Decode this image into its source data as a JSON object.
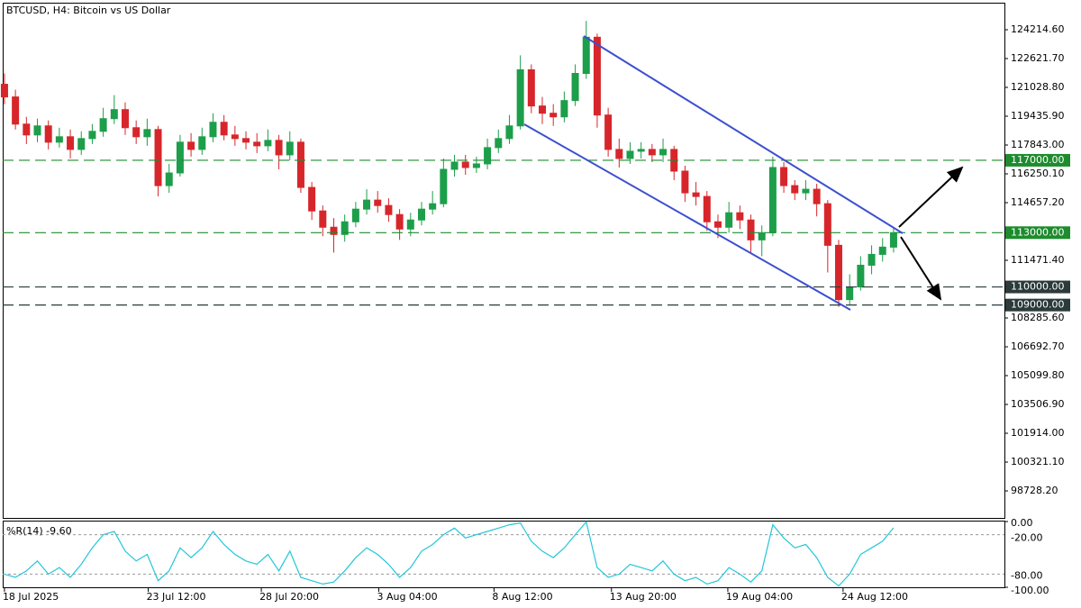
{
  "chart_data": [
    {
      "type": "candlestick",
      "title": "BTCUSD, H4:  Bitcoin vs US Dollar",
      "up_color": "#1d9e4a",
      "down_color": "#d7262b",
      "xlim": [
        -0.16,
        91.1
      ],
      "xticks": [
        {
          "value": 0,
          "label": "18 Jul 2025"
        },
        {
          "value": 13.1,
          "label": "23 Jul 12:00"
        },
        {
          "value": 23.4,
          "label": "28 Jul 20:00"
        },
        {
          "value": 34.1,
          "label": "3 Aug 04:00"
        },
        {
          "value": 44.6,
          "label": "8 Aug 12:00"
        },
        {
          "value": 55.3,
          "label": "13 Aug 20:00"
        },
        {
          "value": 65.9,
          "label": "19 Aug 04:00"
        },
        {
          "value": 76.4,
          "label": "24 Aug 12:00"
        }
      ],
      "ylim": [
        97235,
        125708
      ],
      "yticks": [
        {
          "value": 124214.6,
          "label": "124214.60"
        },
        {
          "value": 122621.7,
          "label": "122621.70"
        },
        {
          "value": 121028.8,
          "label": "121028.80"
        },
        {
          "value": 119435.9,
          "label": "119435.90"
        },
        {
          "value": 117843,
          "label": "117843.00"
        },
        {
          "value": 116250.1,
          "label": "116250.10"
        },
        {
          "value": 114657.2,
          "label": "114657.20"
        },
        {
          "value": 111471.4,
          "label": "111471.40"
        },
        {
          "value": 108285.6,
          "label": "108285.60"
        },
        {
          "value": 106692.7,
          "label": "106692.70"
        },
        {
          "value": 105099.8,
          "label": "105099.80"
        },
        {
          "value": 103506.9,
          "label": "103506.90"
        },
        {
          "value": 101914,
          "label": "101914.00"
        },
        {
          "value": 100321.1,
          "label": "100321.10"
        },
        {
          "value": 98728.2,
          "label": "98728.20"
        }
      ],
      "levels": [
        {
          "value": 117000,
          "label": "117000.00",
          "color": "#1e8c2e"
        },
        {
          "value": 113000,
          "label": "113000.00",
          "color": "#1e8c2e"
        },
        {
          "value": 110000,
          "label": "110000.00",
          "color": "#2b3a3a"
        },
        {
          "value": 109000,
          "label": "109000.00",
          "color": "#2b3a3a"
        }
      ],
      "open": [
        121200,
        120500,
        119000,
        118400,
        118900,
        118000,
        118300,
        117600,
        118200,
        118600,
        119300,
        119800,
        118800,
        118300,
        118700,
        115600,
        116300,
        118000,
        117600,
        118300,
        119100,
        118400,
        118200,
        118000,
        117800,
        118100,
        117300,
        118000,
        115500,
        114200,
        113300,
        112900,
        113600,
        114300,
        114800,
        114500,
        114000,
        113200,
        113700,
        114300,
        114600,
        116500,
        116900,
        116600,
        116800,
        117700,
        118200,
        118900,
        122000,
        120000,
        119600,
        119400,
        120300,
        121800,
        123800,
        119500,
        117600,
        117100,
        117500,
        117600,
        117300,
        117600,
        116400,
        115200,
        115000,
        113600,
        113300,
        114100,
        113700,
        112600,
        113000,
        116600,
        115600,
        115200,
        115400,
        114600,
        112300,
        109300,
        110000,
        111200,
        111800,
        112200
      ],
      "high": [
        121800,
        120900,
        119400,
        119300,
        119200,
        118800,
        118700,
        118600,
        119000,
        119900,
        120600,
        120200,
        119200,
        119300,
        118900,
        116800,
        118400,
        118500,
        118800,
        119600,
        119500,
        118900,
        118600,
        118500,
        118700,
        118400,
        118600,
        118200,
        115800,
        114500,
        113800,
        114000,
        114700,
        115400,
        115300,
        114900,
        114300,
        114100,
        114700,
        115300,
        117100,
        117300,
        117300,
        117200,
        118200,
        118700,
        119500,
        122800,
        122300,
        120500,
        120100,
        120800,
        122300,
        124700,
        124000,
        119900,
        118200,
        118000,
        118000,
        117900,
        118200,
        117800,
        116700,
        115800,
        115300,
        114000,
        114700,
        114500,
        114000,
        113400,
        117200,
        116900,
        115900,
        115900,
        115700,
        114800,
        112600,
        110700,
        111700,
        112300,
        112700,
        113300
      ],
      "low": [
        120100,
        118700,
        117900,
        118000,
        117600,
        117700,
        117100,
        117300,
        117900,
        118300,
        119000,
        118400,
        117900,
        117800,
        115000,
        115200,
        116100,
        117200,
        117300,
        118000,
        118100,
        117800,
        117600,
        117400,
        117500,
        116500,
        117000,
        115200,
        113700,
        112800,
        111900,
        112500,
        113300,
        114000,
        114100,
        113600,
        112600,
        112800,
        113400,
        114000,
        114400,
        116100,
        116200,
        116300,
        116500,
        117400,
        117900,
        118700,
        119600,
        119000,
        118900,
        119100,
        120000,
        121500,
        118800,
        117200,
        116600,
        116800,
        117100,
        116900,
        116900,
        115900,
        114700,
        114500,
        113100,
        112700,
        113000,
        113200,
        111900,
        111700,
        112800,
        115200,
        114800,
        114800,
        113900,
        110800,
        108900,
        109000,
        109800,
        110700,
        111400,
        111900
      ],
      "close": [
        120500,
        119000,
        118400,
        118900,
        118000,
        118300,
        117600,
        118200,
        118600,
        119300,
        119800,
        118800,
        118300,
        118700,
        115600,
        116300,
        118000,
        117600,
        118300,
        119100,
        118400,
        118200,
        118000,
        117800,
        118100,
        117300,
        118000,
        115500,
        114200,
        113300,
        112900,
        113600,
        114300,
        114800,
        114500,
        114000,
        113200,
        113700,
        114300,
        114600,
        116500,
        116900,
        116600,
        116800,
        117700,
        118200,
        118900,
        122000,
        120000,
        119600,
        119400,
        120300,
        121800,
        123800,
        119500,
        117600,
        117100,
        117500,
        117600,
        117300,
        117600,
        116400,
        115200,
        115000,
        113600,
        113300,
        114100,
        113700,
        112600,
        113000,
        116600,
        115600,
        115200,
        115400,
        114600,
        112300,
        109300,
        110000,
        111200,
        111800,
        112200,
        113000
      ]
    },
    {
      "type": "line",
      "label": "%R(14) -9.60",
      "color": "#22c7d8",
      "xlim": [
        -0.16,
        91.1
      ],
      "ylim": [
        -100,
        0
      ],
      "yticks": [
        {
          "value": 0,
          "label": "0.00"
        },
        {
          "value": -20,
          "label": "-20.00"
        },
        {
          "value": -80,
          "label": "-80.00"
        },
        {
          "value": -100,
          "label": "-100.00"
        }
      ],
      "values": [
        -80,
        -85,
        -75,
        -60,
        -80,
        -70,
        -85,
        -65,
        -40,
        -20,
        -15,
        -45,
        -60,
        -50,
        -90,
        -75,
        -40,
        -55,
        -40,
        -15,
        -35,
        -50,
        -60,
        -65,
        -50,
        -75,
        -45,
        -85,
        -90,
        -95,
        -92,
        -75,
        -55,
        -40,
        -50,
        -65,
        -85,
        -70,
        -45,
        -35,
        -20,
        -10,
        -25,
        -20,
        -15,
        -10,
        -5,
        -2,
        -30,
        -45,
        -55,
        -40,
        -20,
        -0.5,
        -70,
        -85,
        -80,
        -65,
        -70,
        -75,
        -60,
        -80,
        -90,
        -85,
        -95,
        -90,
        -70,
        -80,
        -92,
        -75,
        -5,
        -25,
        -40,
        -35,
        -55,
        -85,
        -98,
        -80,
        -50,
        -40,
        -30,
        -9.6
      ]
    }
  ]
}
